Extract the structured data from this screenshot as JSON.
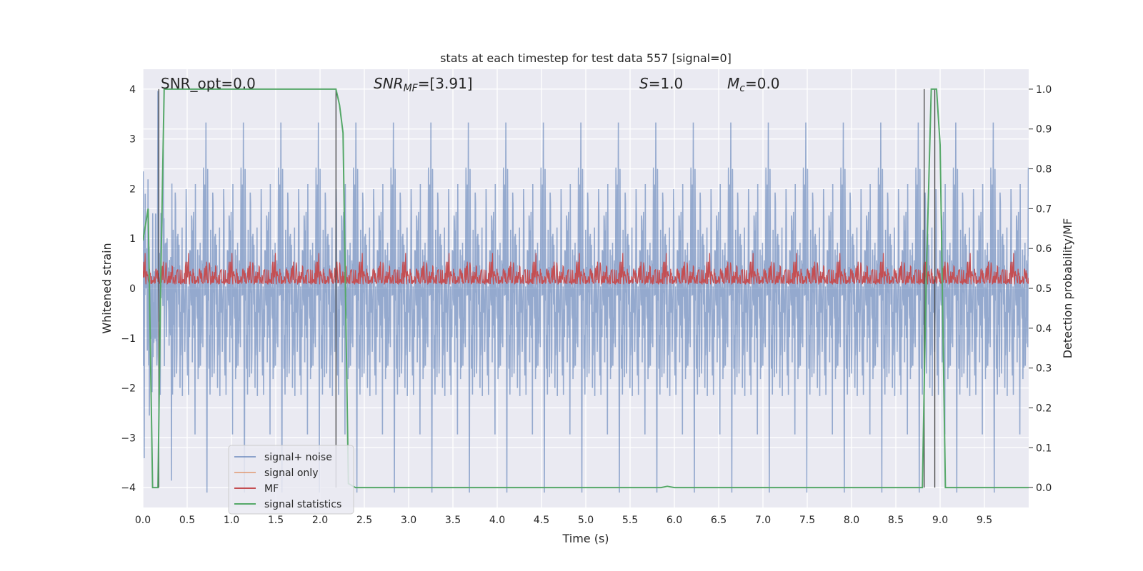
{
  "chart_data": {
    "type": "line",
    "title": "stats at each timestep for test data 557 [signal=0]",
    "xlabel": "Time (s)",
    "ylabel": "Whitened strain",
    "ylabel_right": "Detection probability/MF",
    "xlim": [
      0,
      10
    ],
    "ylim": [
      -4.4,
      4.4
    ],
    "ylim_right": [
      -0.05,
      1.05
    ],
    "x_ticks": [
      "0.0",
      "0.5",
      "1.0",
      "1.5",
      "2.0",
      "2.5",
      "3.0",
      "3.5",
      "4.0",
      "4.5",
      "5.0",
      "5.5",
      "6.0",
      "6.5",
      "7.0",
      "7.5",
      "8.0",
      "8.5",
      "9.0",
      "9.5"
    ],
    "y_ticks": [
      "4",
      "3",
      "2",
      "1",
      "0",
      "−1",
      "−2",
      "−3",
      "−4"
    ],
    "y_ticks_right": [
      "1.0",
      "0.9",
      "0.8",
      "0.7",
      "0.6",
      "0.5",
      "0.4",
      "0.3",
      "0.2",
      "0.1",
      "0.0"
    ],
    "grid": true,
    "legend_position": "lower-left",
    "annotations": {
      "snr_opt": "SNR_opt=0.0",
      "snr_mf_base": "SNR",
      "snr_mf_sub": "MF",
      "snr_mf_rest": "=[3.91]",
      "s_italic": "S",
      "s_rest": "=1.0",
      "mc_base": "M",
      "mc_sub": "c",
      "mc_rest": "=0.0"
    },
    "series": [
      {
        "name": "signal+ noise",
        "color": "#4c72b0",
        "axis": "left",
        "noise_amplitude": 2.4
      },
      {
        "name": "signal only",
        "color": "#dd8452",
        "axis": "left",
        "values": []
      },
      {
        "name": "MF",
        "color": "#c44e52",
        "axis": "right",
        "mean": 0.53,
        "range": [
          0.51,
          0.62
        ]
      },
      {
        "name": "signal statistics",
        "color": "#55a868",
        "axis": "right",
        "x": [
          0.0,
          0.06,
          0.11,
          0.17,
          0.2,
          0.24,
          0.3,
          2.18,
          2.22,
          2.26,
          2.32,
          2.4,
          5.85,
          5.92,
          6.0,
          8.8,
          8.84,
          8.9,
          8.96,
          9.0,
          9.06,
          10.0
        ],
        "y": [
          0.62,
          0.7,
          0.0,
          0.0,
          0.5,
          1.0,
          1.0,
          1.0,
          0.96,
          0.89,
          0.01,
          0.0,
          0.0,
          0.003,
          0.0,
          0.0,
          0.5,
          1.0,
          1.0,
          0.86,
          0.0,
          0.0
        ]
      }
    ],
    "vertical_markers_x": [
      0.18,
      2.18,
      8.82,
      8.94
    ]
  }
}
